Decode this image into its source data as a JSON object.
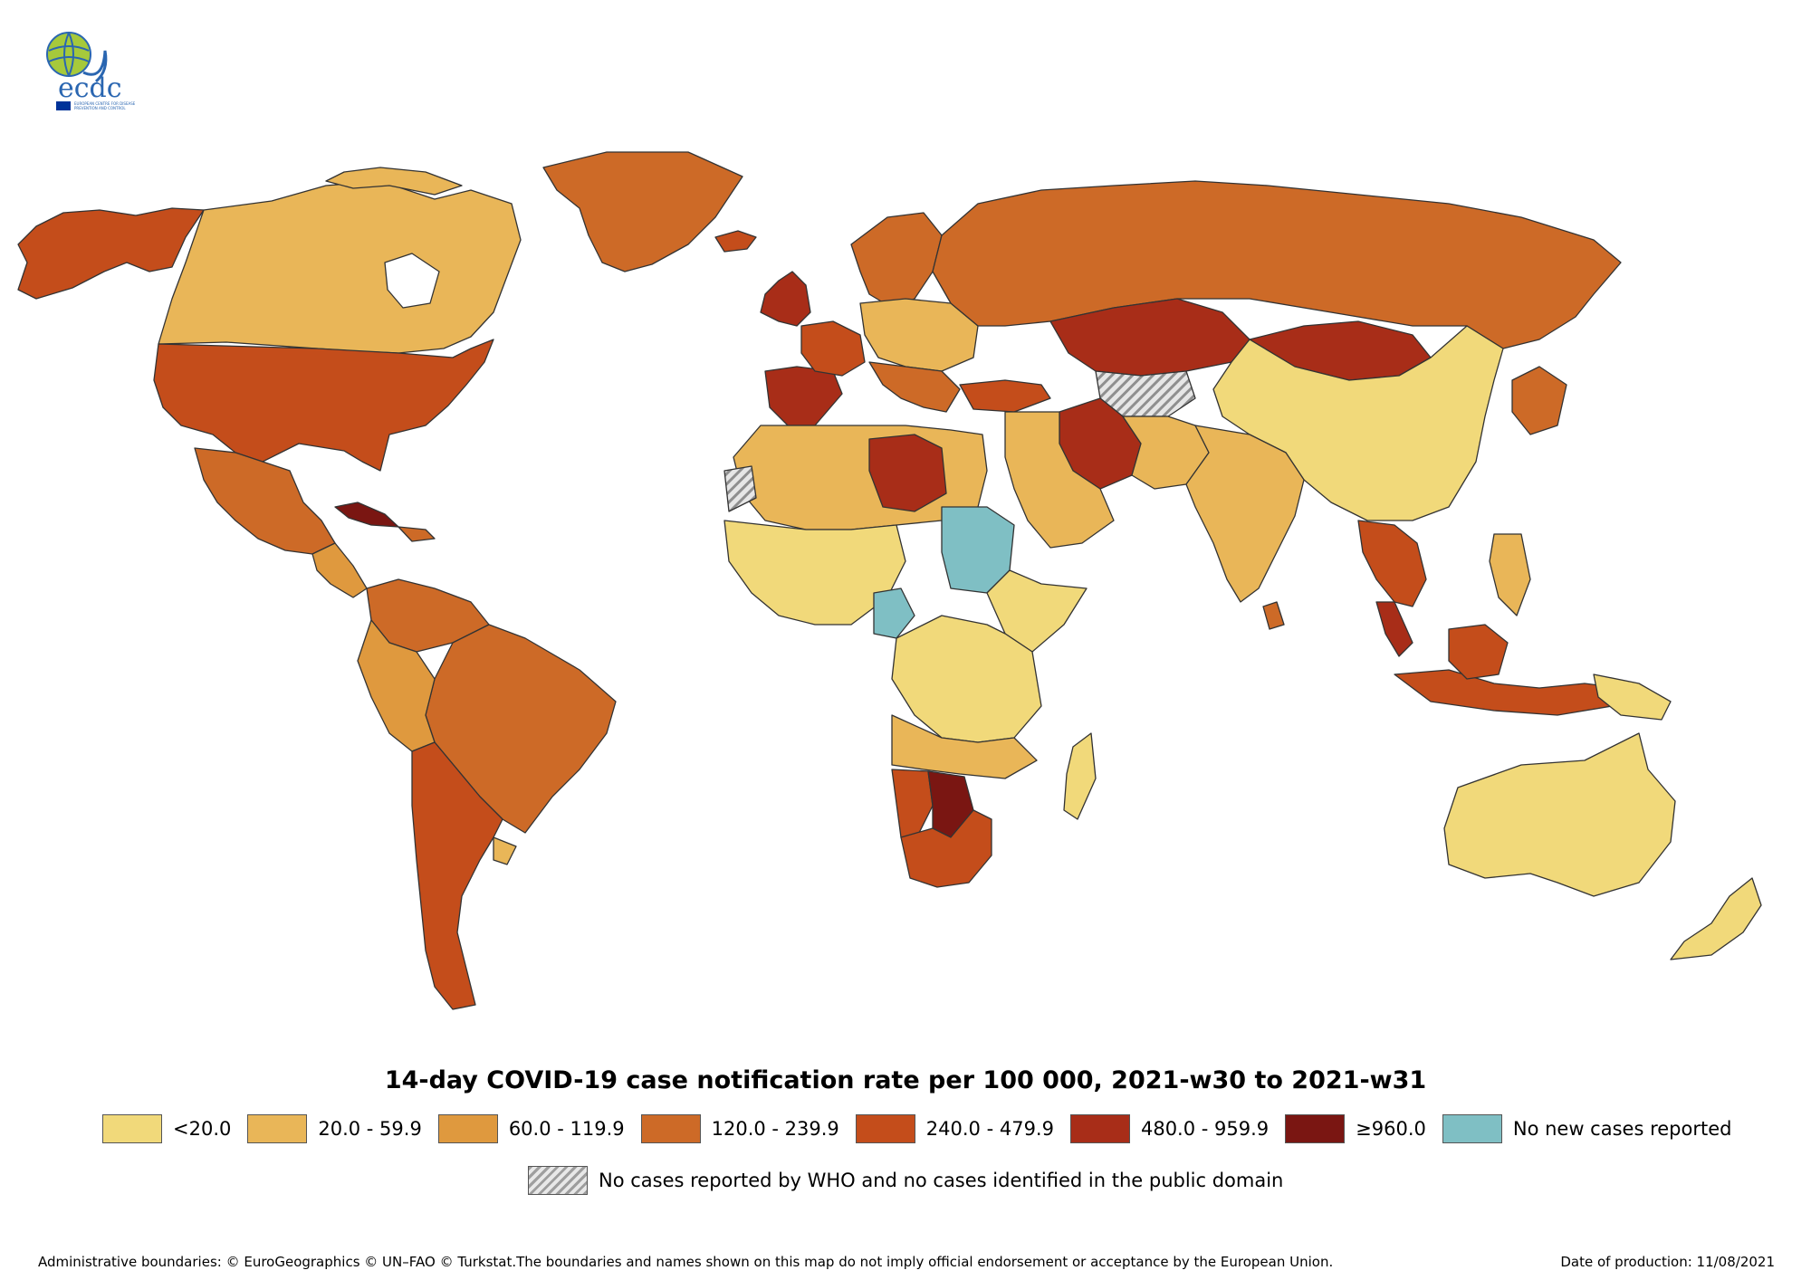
{
  "logo": {
    "text": "ecdc",
    "subtext": "EUROPEAN CENTRE FOR DISEASE PREVENTION AND CONTROL"
  },
  "title": "14-day COVID-19 case notification rate per 100 000, 2021-w30 to 2021-w31",
  "legend": [
    {
      "label": "<20.0",
      "color": "#f1d97a"
    },
    {
      "label": "20.0 - 59.9",
      "color": "#e9b658"
    },
    {
      "label": "60.0 - 119.9",
      "color": "#df993e"
    },
    {
      "label": "120.0 - 239.9",
      "color": "#cd6a27"
    },
    {
      "label": "240.0 - 479.9",
      "color": "#c44d1b"
    },
    {
      "label": "480.0 - 959.9",
      "color": "#a82d18"
    },
    {
      "label": "≥960.0",
      "color": "#7a1612"
    },
    {
      "label": "No new cases reported",
      "color": "#7fbfc4"
    }
  ],
  "legend_hatch": {
    "label": "No cases reported by WHO and no cases identified in the public domain"
  },
  "footer": {
    "left": "Administrative boundaries: © EuroGeographics © UN–FAO © Turkstat.The boundaries and names shown on this map do not imply official endorsement or acceptance by the European Union.",
    "right": "Date of production: 11/08/2021"
  }
}
